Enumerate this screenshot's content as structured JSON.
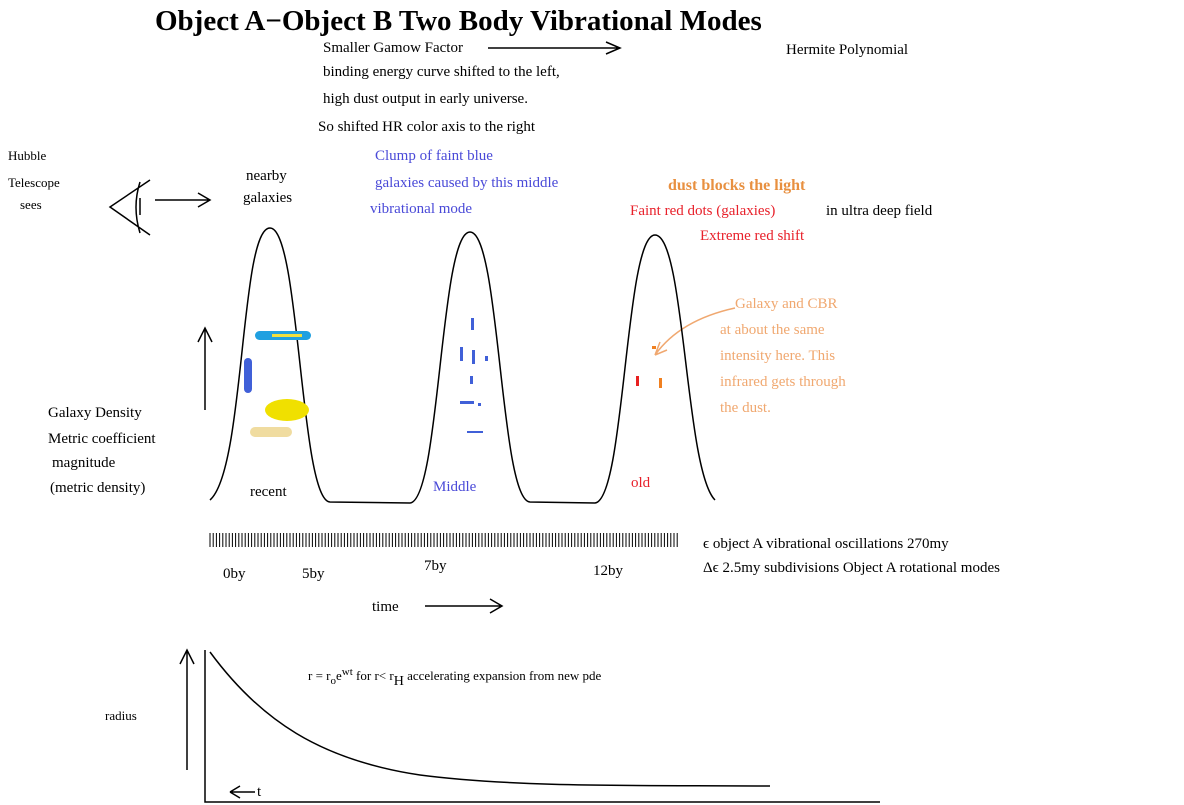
{
  "title": "Object A−Object B Two Body Vibrational Modes",
  "notes": {
    "gamow": "Smaller Gamow Factor",
    "hermite": "Hermite Polynomial",
    "binding": [
      "binding energy curve shifted to the left,",
      "high dust output in early universe.",
      "So shifted HR color axis to the right"
    ]
  },
  "observer": [
    "Hubble",
    "Telescope",
    "sees"
  ],
  "nearby": [
    "nearby",
    "galaxies"
  ],
  "blue_note": [
    "Clump of faint blue",
    "galaxies caused by this middle",
    "vibrational mode"
  ],
  "dust": "dust blocks the light",
  "red_note": {
    "dots": "Faint red dots (galaxies)",
    "field": "in ultra deep field",
    "shift": "Extreme red shift"
  },
  "cbr_note": [
    "Galaxy and CBR",
    "at about the same",
    "intensity here. This",
    "infrared gets through",
    "the dust."
  ],
  "y_label": [
    "Galaxy Density",
    "Metric coefficient",
    "magnitude",
    "(metric density)"
  ],
  "modes": [
    "recent",
    "Middle",
    "old"
  ],
  "oscillations": [
    "ϵ object A vibrational oscillations  270my",
    "Δϵ  2.5my subdivisions  Object A rotational modes"
  ],
  "times": [
    "0by",
    "5by",
    "7by",
    "12by"
  ],
  "time_label": "time",
  "radius_label": "radius",
  "equation": {
    "lhs": "r = r",
    "sub_o": "o",
    "e": "e",
    "sup": "wt",
    "cond": "  for r< r",
    "sub_h": "H",
    "rest": "  accelerating expansion from new pde"
  },
  "t_label": "t"
}
